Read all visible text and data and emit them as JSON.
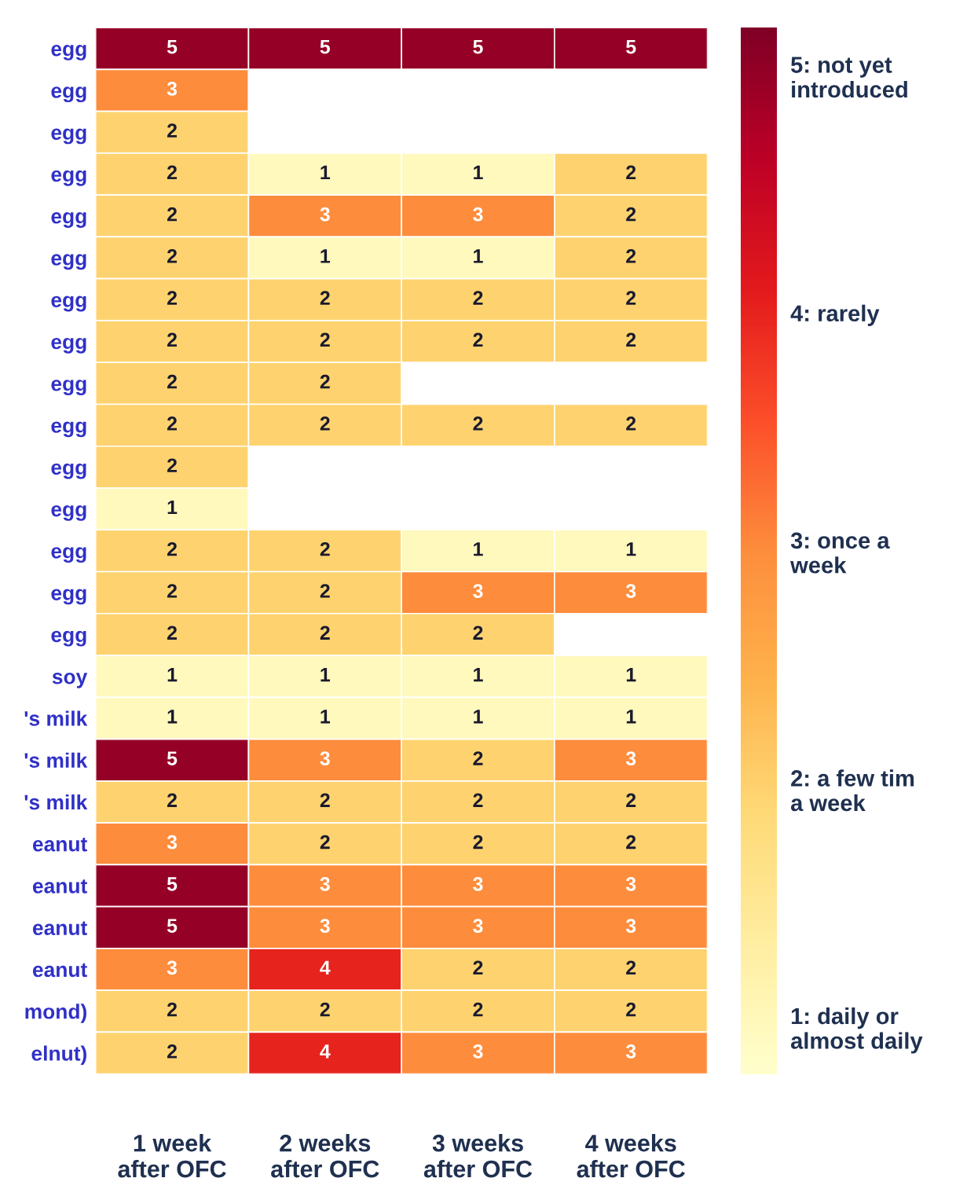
{
  "chart_data": {
    "type": "heatmap",
    "categories": [
      "1 week\nafter OFC",
      "2 weeks\nafter OFC",
      "3 weeks\nafter OFC",
      "4 weeks\nafter OFC"
    ],
    "y_categories": [
      "egg",
      "egg",
      "egg",
      "egg",
      "egg",
      "egg",
      "egg",
      "egg",
      "egg",
      "egg",
      "egg",
      "egg",
      "egg",
      "egg",
      "egg",
      "soy",
      "'s milk",
      "'s milk",
      "'s milk",
      "eanut",
      "eanut",
      "eanut",
      "eanut",
      "mond)",
      "elnut)"
    ],
    "cells": [
      [
        5,
        5,
        5,
        5
      ],
      [
        3,
        null,
        null,
        null
      ],
      [
        2,
        null,
        null,
        null
      ],
      [
        2,
        1,
        1,
        2
      ],
      [
        2,
        3,
        3,
        2
      ],
      [
        2,
        1,
        1,
        2
      ],
      [
        2,
        2,
        2,
        2
      ],
      [
        2,
        2,
        2,
        2
      ],
      [
        2,
        2,
        null,
        null
      ],
      [
        2,
        2,
        2,
        2
      ],
      [
        2,
        null,
        null,
        null
      ],
      [
        1,
        null,
        null,
        null
      ],
      [
        2,
        2,
        1,
        1
      ],
      [
        2,
        2,
        3,
        3
      ],
      [
        2,
        2,
        2,
        null
      ],
      [
        1,
        1,
        1,
        1
      ],
      [
        1,
        1,
        1,
        1
      ],
      [
        5,
        3,
        2,
        3
      ],
      [
        2,
        2,
        2,
        2
      ],
      [
        3,
        2,
        2,
        2
      ],
      [
        5,
        3,
        3,
        3
      ],
      [
        5,
        3,
        3,
        3
      ],
      [
        3,
        4,
        2,
        2
      ],
      [
        2,
        2,
        2,
        2
      ],
      [
        2,
        4,
        3,
        3
      ]
    ],
    "data_labels": true,
    "clim": [
      0.8,
      5.2
    ],
    "cticks": [
      {
        "value": 1,
        "label": "1: daily or\nalmost daily"
      },
      {
        "value": 2,
        "label": "2: a few tim\na week"
      },
      {
        "value": 3,
        "label": "3: once a\nweek"
      },
      {
        "value": 4,
        "label": "4: rarely"
      },
      {
        "value": 5,
        "label": "5: not yet\nintroduced"
      }
    ]
  }
}
